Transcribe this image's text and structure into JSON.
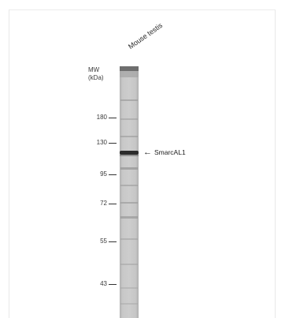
{
  "lane": {
    "label": "Mouse testis"
  },
  "mw": {
    "title_line1": "MW",
    "title_line2": "(kDa)",
    "markers": [
      {
        "label": "180",
        "key": "m180"
      },
      {
        "label": "130",
        "key": "m130"
      },
      {
        "label": "95",
        "key": "m95"
      },
      {
        "label": "72",
        "key": "m72"
      },
      {
        "label": "55",
        "key": "m55"
      },
      {
        "label": "43",
        "key": "m43"
      }
    ]
  },
  "target": {
    "arrow": "←",
    "label": "SmarcAL1"
  }
}
